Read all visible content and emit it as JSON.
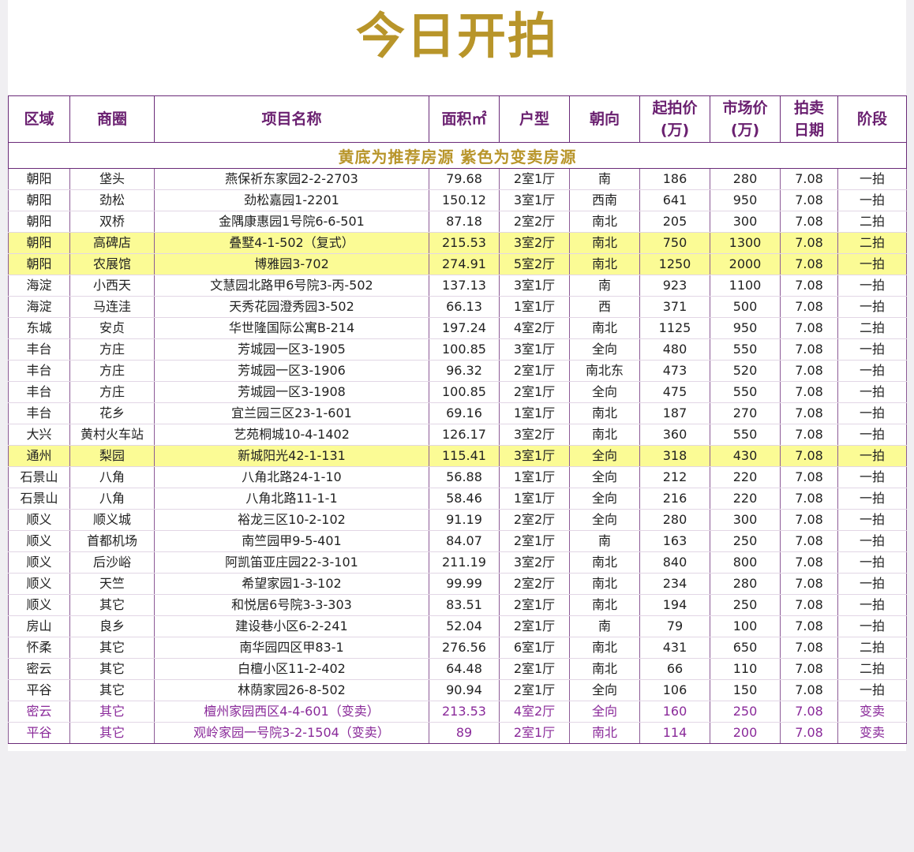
{
  "title": "今日开拍",
  "headers": {
    "district": "区域",
    "area": "商圈",
    "project": "项目名称",
    "size": "面积㎡",
    "layout": "户型",
    "orientation": "朝向",
    "start_price_1": "起拍价",
    "start_price_2": "(万)",
    "market_price_1": "市场价",
    "market_price_2": "(万)",
    "date_1": "拍卖",
    "date_2": "日期",
    "stage": "阶段"
  },
  "notice": "黄底为推荐房源 紫色为变卖房源",
  "colors": {
    "title": "#b8952a",
    "header_text": "#6a2070",
    "recommended_bg": "#fbfb95",
    "sale_text": "#8a2a9a"
  },
  "rows": [
    {
      "district": "朝阳",
      "area": "垡头",
      "project": "燕保祈东家园2-2-2703",
      "size": "79.68",
      "layout": "2室1厅",
      "orientation": "南",
      "start_price": "186",
      "market_price": "280",
      "date": "7.08",
      "stage": "一拍",
      "highlight": "none"
    },
    {
      "district": "朝阳",
      "area": "劲松",
      "project": "劲松嘉园1-2201",
      "size": "150.12",
      "layout": "3室1厅",
      "orientation": "西南",
      "start_price": "641",
      "market_price": "950",
      "date": "7.08",
      "stage": "一拍",
      "highlight": "none"
    },
    {
      "district": "朝阳",
      "area": "双桥",
      "project": "金隅康惠园1号院6-6-501",
      "size": "87.18",
      "layout": "2室2厅",
      "orientation": "南北",
      "start_price": "205",
      "market_price": "300",
      "date": "7.08",
      "stage": "二拍",
      "highlight": "none"
    },
    {
      "district": "朝阳",
      "area": "高碑店",
      "project": "叠墅4-1-502（复式）",
      "size": "215.53",
      "layout": "3室2厅",
      "orientation": "南北",
      "start_price": "750",
      "market_price": "1300",
      "date": "7.08",
      "stage": "二拍",
      "highlight": "yellow"
    },
    {
      "district": "朝阳",
      "area": "农展馆",
      "project": "博雅园3-702",
      "size": "274.91",
      "layout": "5室2厅",
      "orientation": "南北",
      "start_price": "1250",
      "market_price": "2000",
      "date": "7.08",
      "stage": "一拍",
      "highlight": "yellow"
    },
    {
      "district": "海淀",
      "area": "小西天",
      "project": "文慧园北路甲6号院3-丙-502",
      "size": "137.13",
      "layout": "3室1厅",
      "orientation": "南",
      "start_price": "923",
      "market_price": "1100",
      "date": "7.08",
      "stage": "一拍",
      "highlight": "none"
    },
    {
      "district": "海淀",
      "area": "马连洼",
      "project": "天秀花园澄秀园3-502",
      "size": "66.13",
      "layout": "1室1厅",
      "orientation": "西",
      "start_price": "371",
      "market_price": "500",
      "date": "7.08",
      "stage": "一拍",
      "highlight": "none"
    },
    {
      "district": "东城",
      "area": "安贞",
      "project": "华世隆国际公寓B-214",
      "size": "197.24",
      "layout": "4室2厅",
      "orientation": "南北",
      "start_price": "1125",
      "market_price": "950",
      "date": "7.08",
      "stage": "二拍",
      "highlight": "none"
    },
    {
      "district": "丰台",
      "area": "方庄",
      "project": "芳城园一区3-1905",
      "size": "100.85",
      "layout": "3室1厅",
      "orientation": "全向",
      "start_price": "480",
      "market_price": "550",
      "date": "7.08",
      "stage": "一拍",
      "highlight": "none"
    },
    {
      "district": "丰台",
      "area": "方庄",
      "project": "芳城园一区3-1906",
      "size": "96.32",
      "layout": "2室1厅",
      "orientation": "南北东",
      "start_price": "473",
      "market_price": "520",
      "date": "7.08",
      "stage": "一拍",
      "highlight": "none"
    },
    {
      "district": "丰台",
      "area": "方庄",
      "project": "芳城园一区3-1908",
      "size": "100.85",
      "layout": "2室1厅",
      "orientation": "全向",
      "start_price": "475",
      "market_price": "550",
      "date": "7.08",
      "stage": "一拍",
      "highlight": "none"
    },
    {
      "district": "丰台",
      "area": "花乡",
      "project": "宜兰园三区23-1-601",
      "size": "69.16",
      "layout": "1室1厅",
      "orientation": "南北",
      "start_price": "187",
      "market_price": "270",
      "date": "7.08",
      "stage": "一拍",
      "highlight": "none"
    },
    {
      "district": "大兴",
      "area": "黄村火车站",
      "project": "艺苑桐城10-4-1402",
      "size": "126.17",
      "layout": "3室2厅",
      "orientation": "南北",
      "start_price": "360",
      "market_price": "550",
      "date": "7.08",
      "stage": "一拍",
      "highlight": "none"
    },
    {
      "district": "通州",
      "area": "梨园",
      "project": "新城阳光42-1-131",
      "size": "115.41",
      "layout": "3室1厅",
      "orientation": "全向",
      "start_price": "318",
      "market_price": "430",
      "date": "7.08",
      "stage": "一拍",
      "highlight": "yellow"
    },
    {
      "district": "石景山",
      "area": "八角",
      "project": "八角北路24-1-10",
      "size": "56.88",
      "layout": "1室1厅",
      "orientation": "全向",
      "start_price": "212",
      "market_price": "220",
      "date": "7.08",
      "stage": "一拍",
      "highlight": "none"
    },
    {
      "district": "石景山",
      "area": "八角",
      "project": "八角北路11-1-1",
      "size": "58.46",
      "layout": "1室1厅",
      "orientation": "全向",
      "start_price": "216",
      "market_price": "220",
      "date": "7.08",
      "stage": "一拍",
      "highlight": "none"
    },
    {
      "district": "顺义",
      "area": "顺义城",
      "project": "裕龙三区10-2-102",
      "size": "91.19",
      "layout": "2室2厅",
      "orientation": "全向",
      "start_price": "280",
      "market_price": "300",
      "date": "7.08",
      "stage": "一拍",
      "highlight": "none"
    },
    {
      "district": "顺义",
      "area": "首都机场",
      "project": "南竺园甲9-5-401",
      "size": "84.07",
      "layout": "2室1厅",
      "orientation": "南",
      "start_price": "163",
      "market_price": "250",
      "date": "7.08",
      "stage": "一拍",
      "highlight": "none"
    },
    {
      "district": "顺义",
      "area": "后沙峪",
      "project": "阿凯笛亚庄园22-3-101",
      "size": "211.19",
      "layout": "3室2厅",
      "orientation": "南北",
      "start_price": "840",
      "market_price": "800",
      "date": "7.08",
      "stage": "一拍",
      "highlight": "none"
    },
    {
      "district": "顺义",
      "area": "天竺",
      "project": "希望家园1-3-102",
      "size": "99.99",
      "layout": "2室2厅",
      "orientation": "南北",
      "start_price": "234",
      "market_price": "280",
      "date": "7.08",
      "stage": "一拍",
      "highlight": "none"
    },
    {
      "district": "顺义",
      "area": "其它",
      "project": "和悦居6号院3-3-303",
      "size": "83.51",
      "layout": "2室1厅",
      "orientation": "南北",
      "start_price": "194",
      "market_price": "250",
      "date": "7.08",
      "stage": "一拍",
      "highlight": "none"
    },
    {
      "district": "房山",
      "area": "良乡",
      "project": "建设巷小区6-2-241",
      "size": "52.04",
      "layout": "2室1厅",
      "orientation": "南",
      "start_price": "79",
      "market_price": "100",
      "date": "7.08",
      "stage": "一拍",
      "highlight": "none"
    },
    {
      "district": "怀柔",
      "area": "其它",
      "project": "南华园四区甲83-1",
      "size": "276.56",
      "layout": "6室1厅",
      "orientation": "南北",
      "start_price": "431",
      "market_price": "650",
      "date": "7.08",
      "stage": "二拍",
      "highlight": "none"
    },
    {
      "district": "密云",
      "area": "其它",
      "project": "白檀小区11-2-402",
      "size": "64.48",
      "layout": "2室1厅",
      "orientation": "南北",
      "start_price": "66",
      "market_price": "110",
      "date": "7.08",
      "stage": "二拍",
      "highlight": "none"
    },
    {
      "district": "平谷",
      "area": "其它",
      "project": "林荫家园26-8-502",
      "size": "90.94",
      "layout": "2室1厅",
      "orientation": "全向",
      "start_price": "106",
      "market_price": "150",
      "date": "7.08",
      "stage": "一拍",
      "highlight": "none"
    },
    {
      "district": "密云",
      "area": "其它",
      "project": "檀州家园西区4-4-601（变卖）",
      "size": "213.53",
      "layout": "4室2厅",
      "orientation": "全向",
      "start_price": "160",
      "market_price": "250",
      "date": "7.08",
      "stage": "变卖",
      "highlight": "purple"
    },
    {
      "district": "平谷",
      "area": "其它",
      "project": "观岭家园一号院3-2-1504（变卖）",
      "size": "89",
      "layout": "2室1厅",
      "orientation": "南北",
      "start_price": "114",
      "market_price": "200",
      "date": "7.08",
      "stage": "变卖",
      "highlight": "purple"
    }
  ]
}
